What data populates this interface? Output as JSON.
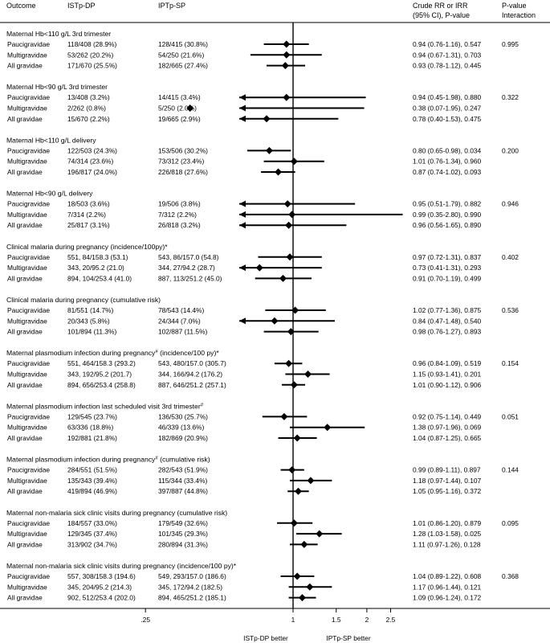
{
  "headers": {
    "outcome": "Outcome",
    "istp": "ISTp-DP",
    "iptp": "IPTp-SP",
    "rr_line1": "Crude RR or IRR",
    "rr_line2": "(95% CI), P-value",
    "pint_line1": "P-value",
    "pint_line2": "Interaction"
  },
  "chart_data": {
    "type": "forest",
    "x_scale": "log",
    "reference_line": 1,
    "ticks": [
      {
        "value": 0.25,
        "label": ".25"
      },
      {
        "value": 1,
        "label": "1"
      },
      {
        "value": 1.5,
        "label": "1.5"
      },
      {
        "value": 2,
        "label": "2"
      },
      {
        "value": 2.5,
        "label": "2.5"
      }
    ],
    "favours_left": "ISTp-DP better",
    "favours_right": "IPTp-SP better",
    "groups": [
      {
        "title": "Maternal Hb<110 g/L 3rd trimester",
        "p_interaction": "0.995",
        "rows": [
          {
            "label": "Paucigravidae",
            "istp": "118/408 (28.9%)",
            "iptp": "128/415 (30.8%)",
            "result": "0.94 (0.76-1.16), 0.547",
            "est": 0.94,
            "lo": 0.76,
            "hi": 1.16
          },
          {
            "label": "Multigravidae",
            "istp": "53/262 (20.2%)",
            "iptp": "54/250 (21.6%)",
            "result": "0.94 (0.67-1.31), 0.703",
            "est": 0.94,
            "lo": 0.67,
            "hi": 1.31
          },
          {
            "label": "All gravidae",
            "istp": "171/670 (25.5%)",
            "iptp": "182/665 (27.4%)",
            "result": "0.93 (0.78-1.12), 0.445",
            "est": 0.93,
            "lo": 0.78,
            "hi": 1.12
          }
        ]
      },
      {
        "title": "Maternal Hb<90 g/L 3rd trimester",
        "p_interaction": "0.322",
        "rows": [
          {
            "label": "Paucigravidae",
            "istp": "13/408 (3.2%)",
            "iptp": "14/415 (3.4%)",
            "result": "0.94 (0.45-1.98), 0.880",
            "est": 0.94,
            "lo": 0.45,
            "hi": 1.98
          },
          {
            "label": "Multigravidae",
            "istp": "2/262 (0.8%)",
            "iptp": "5/250 (2.0%)",
            "result": "0.38 (0.07-1.95), 0.247",
            "est": 0.38,
            "lo": 0.07,
            "hi": 1.95
          },
          {
            "label": "All gravidae",
            "istp": "15/670 (2.2%)",
            "iptp": "19/665 (2.9%)",
            "result": "0.78 (0.40-1.53), 0.475",
            "est": 0.78,
            "lo": 0.4,
            "hi": 1.53
          }
        ]
      },
      {
        "title": "Maternal Hb<110 g/L delivery",
        "p_interaction": "0.200",
        "rows": [
          {
            "label": "Paucigravidae",
            "istp": "122/503 (24.3%)",
            "iptp": "153/506 (30.2%)",
            "result": "0.80 (0.65-0.98), 0.034",
            "est": 0.8,
            "lo": 0.65,
            "hi": 0.98
          },
          {
            "label": "Multigravidae",
            "istp": "74/314 (23.6%)",
            "iptp": "73/312 (23.4%)",
            "result": "1.01 (0.76-1.34), 0.960",
            "est": 1.01,
            "lo": 0.76,
            "hi": 1.34
          },
          {
            "label": "All gravidae",
            "istp": "196/817 (24.0%)",
            "iptp": "226/818 (27.6%)",
            "result": "0.87 (0.74-1.02), 0.093",
            "est": 0.87,
            "lo": 0.74,
            "hi": 1.02
          }
        ]
      },
      {
        "title": "Maternal Hb<90 g/L delivery",
        "p_interaction": "0.946",
        "rows": [
          {
            "label": "Paucigravidae",
            "istp": "18/503 (3.6%)",
            "iptp": "19/506 (3.8%)",
            "result": "0.95 (0.51-1.79), 0.882",
            "est": 0.95,
            "lo": 0.51,
            "hi": 1.79
          },
          {
            "label": "Multigravidae",
            "istp": "7/314 (2.2%)",
            "iptp": "7/312 (2.2%)",
            "result": "0.99 (0.35-2.80), 0.990",
            "est": 0.99,
            "lo": 0.35,
            "hi": 2.8
          },
          {
            "label": "All gravidae",
            "istp": "25/817 (3.1%)",
            "iptp": "26/818 (3.2%)",
            "result": "0.96 (0.56-1.65), 0.890",
            "est": 0.96,
            "lo": 0.56,
            "hi": 1.65
          }
        ]
      },
      {
        "title": "Clinical malaria during pregnancy (incidence/100py)*",
        "p_interaction": "0.402",
        "rows": [
          {
            "label": "Paucigravidae",
            "istp": "551, 84/158.3 (53.1)",
            "iptp": "543, 86/157.0 (54.8)",
            "result": "0.97 (0.72-1.31), 0.837",
            "est": 0.97,
            "lo": 0.72,
            "hi": 1.31
          },
          {
            "label": "Multigravidae",
            "istp": "343, 20/95.2 (21.0)",
            "iptp": "344, 27/94.2 (28.7)",
            "result": "0.73 (0.41-1.31), 0.293",
            "est": 0.73,
            "lo": 0.41,
            "hi": 1.31
          },
          {
            "label": "All gravidae",
            "istp": "894, 104/253.4 (41.0)",
            "iptp": "887, 113/251.2 (45.0)",
            "result": "0.91 (0.70-1.19), 0.499",
            "est": 0.91,
            "lo": 0.7,
            "hi": 1.19
          }
        ]
      },
      {
        "title": "Clinical malaria during pregnancy (cumulative risk)",
        "p_interaction": "0.536",
        "rows": [
          {
            "label": "Paucigravidae",
            "istp": "81/551 (14.7%)",
            "iptp": "78/543 (14.4%)",
            "result": "1.02 (0.77-1.36), 0.875",
            "est": 1.02,
            "lo": 0.77,
            "hi": 1.36
          },
          {
            "label": "Multigravidae",
            "istp": "20/343 (5.8%)",
            "iptp": "24/344 (7.0%)",
            "result": "0.84 (0.47-1.48), 0.540",
            "est": 0.84,
            "lo": 0.47,
            "hi": 1.48
          },
          {
            "label": "All gravidae",
            "istp": "101/894 (11.3%)",
            "iptp": "102/887 (11.5%)",
            "result": "0.98 (0.76-1.27), 0.893",
            "est": 0.98,
            "lo": 0.76,
            "hi": 1.27
          }
        ]
      },
      {
        "title": "Maternal plasmodium infection during pregnancy",
        "title_sup": "#",
        "title_rest": " (incidence/100 py)*",
        "p_interaction": "0.154",
        "rows": [
          {
            "label": "Paucigravidae",
            "istp": "551, 464/158.3 (293.2)",
            "iptp": "543, 480/157.0 (305.7)",
            "result": "0.96 (0.84-1.09), 0.519",
            "est": 0.96,
            "lo": 0.84,
            "hi": 1.09
          },
          {
            "label": "Multigravidae",
            "istp": "343, 192/95.2 (201.7)",
            "iptp": "344, 166/94.2 (176.2)",
            "result": "1.15 (0.93-1.41), 0.201",
            "est": 1.15,
            "lo": 0.93,
            "hi": 1.41
          },
          {
            "label": "All gravidae",
            "istp": "894, 656/253.4 (258.8)",
            "iptp": "887, 646/251.2 (257.1)",
            "result": "1.01 (0.90-1.12), 0.906",
            "est": 1.01,
            "lo": 0.9,
            "hi": 1.12
          }
        ]
      },
      {
        "title": "Maternal plasmodium infection last scheduled visit 3rd trimester",
        "title_sup": "#",
        "title_rest": "",
        "p_interaction": "0.051",
        "rows": [
          {
            "label": "Paucigravidae",
            "istp": "129/545 (23.7%)",
            "iptp": "136/530 (25.7%)",
            "result": "0.92 (0.75-1.14), 0.449",
            "est": 0.92,
            "lo": 0.75,
            "hi": 1.14
          },
          {
            "label": "Multigravidae",
            "istp": "63/336 (18.8%)",
            "iptp": "46/339 (13.6%)",
            "result": "1.38 (0.97-1.96), 0.069",
            "est": 1.38,
            "lo": 0.97,
            "hi": 1.96
          },
          {
            "label": "All gravidae",
            "istp": "192/881 (21.8%)",
            "iptp": "182/869 (20.9%)",
            "result": "1.04 (0.87-1.25), 0.665",
            "est": 1.04,
            "lo": 0.87,
            "hi": 1.25
          }
        ]
      },
      {
        "title": "Maternal plasmodium infection during pregnancy",
        "title_sup": "#",
        "title_rest": " (cumulative risk)",
        "p_interaction": "0.144",
        "rows": [
          {
            "label": "Paucigravidae",
            "istp": "284/551 (51.5%)",
            "iptp": "282/543 (51.9%)",
            "result": "0.99 (0.89-1.11), 0.897",
            "est": 0.99,
            "lo": 0.89,
            "hi": 1.11
          },
          {
            "label": "Multigravidae",
            "istp": "135/343 (39.4%)",
            "iptp": "115/344 (33.4%)",
            "result": "1.18 (0.97-1.44), 0.107",
            "est": 1.18,
            "lo": 0.97,
            "hi": 1.44
          },
          {
            "label": "All gravidae",
            "istp": "419/894 (46.9%)",
            "iptp": "397/887 (44.8%)",
            "result": "1.05 (0.95-1.16), 0.372",
            "est": 1.05,
            "lo": 0.95,
            "hi": 1.16
          }
        ]
      },
      {
        "title": "Maternal non-malaria sick clinic visits during pregnancy (cumulative risk)",
        "p_interaction": "0.095",
        "rows": [
          {
            "label": "Paucigravidae",
            "istp": "184/557 (33.0%)",
            "iptp": "179/549 (32.6%)",
            "result": "1.01 (0.86-1.20), 0.879",
            "est": 1.01,
            "lo": 0.86,
            "hi": 1.2
          },
          {
            "label": "Multigravidae",
            "istp": "129/345 (37.4%)",
            "iptp": "101/345 (29.3%)",
            "result": "1.28 (1.03-1.58), 0.025",
            "est": 1.28,
            "lo": 1.03,
            "hi": 1.58
          },
          {
            "label": "All gravidae",
            "istp": "313/902 (34.7%)",
            "iptp": "280/894 (31.3%)",
            "result": "1.11 (0.97-1.26), 0.128",
            "est": 1.11,
            "lo": 0.97,
            "hi": 1.26
          }
        ]
      },
      {
        "title": "Maternal non-malaria sick clinic visits during pregnancy (incidence/100 py)*",
        "p_interaction": "0.368",
        "rows": [
          {
            "label": "Paucigravidae",
            "istp": "557, 308/158.3 (194.6)",
            "iptp": "549, 293/157.0 (186.6)",
            "result": "1.04 (0.89-1.22), 0.608",
            "est": 1.04,
            "lo": 0.89,
            "hi": 1.22
          },
          {
            "label": "Multigravidae",
            "istp": "345, 204/95.2 (214.3)",
            "iptp": "345, 172/94.2 (182.5)",
            "result": "1.17 (0.96-1.44), 0.121",
            "est": 1.17,
            "lo": 0.96,
            "hi": 1.44
          },
          {
            "label": "All gravidae",
            "istp": "902, 512/253.4 (202.0)",
            "iptp": "894, 465/251.2 (185.1)",
            "result": "1.09 (0.96-1.24), 0.172",
            "est": 1.09,
            "lo": 0.96,
            "hi": 1.24
          }
        ]
      }
    ]
  }
}
